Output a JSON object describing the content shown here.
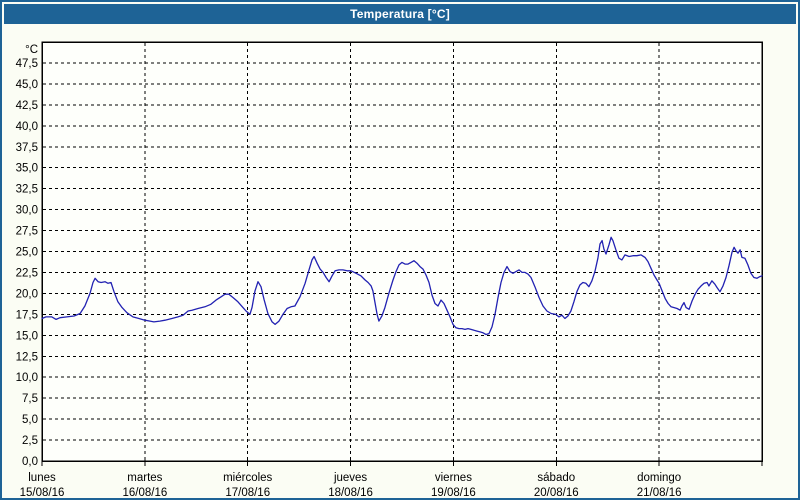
{
  "window": {
    "title": "Temperatura [°C]"
  },
  "colors": {
    "chrome_blue": "#1E6396",
    "title_text": "#FFFFFF",
    "content_bg": "#FBFDF4",
    "plot_bg": "#FEFFFB",
    "line_blue": "#2222B2",
    "grid_black": "#000000",
    "text_black": "#000000"
  },
  "chart_data": {
    "type": "line",
    "title": "Temperatura [°C]",
    "legend": "none",
    "grid": "dashed",
    "y_axis": {
      "unit_label": "°C",
      "min": 0,
      "max": 50,
      "grid_step": 2.5,
      "tick_values": [
        0,
        2.5,
        5,
        7.5,
        10,
        12.5,
        15,
        17.5,
        20,
        22.5,
        25,
        27.5,
        30,
        32.5,
        35,
        37.5,
        40,
        42.5,
        45,
        47.5
      ],
      "tick_labels": [
        "0,0",
        "2,5",
        "5,0",
        "7,5",
        "10,0",
        "12,5",
        "15,0",
        "17,5",
        "20,0",
        "22,5",
        "25,0",
        "27,5",
        "30,0",
        "32,5",
        "35,0",
        "37,5",
        "40,0",
        "42,5",
        "45,0",
        "47,5"
      ]
    },
    "x_axis": {
      "total_hours": 168,
      "day_ticks_hours": [
        0,
        24,
        48,
        72,
        96,
        120,
        144,
        168
      ],
      "days": [
        {
          "name": "lunes",
          "date": "15/08/16",
          "start_hour": 0
        },
        {
          "name": "martes",
          "date": "16/08/16",
          "start_hour": 24
        },
        {
          "name": "miércoles",
          "date": "17/08/16",
          "start_hour": 48
        },
        {
          "name": "jueves",
          "date": "18/08/16",
          "start_hour": 72
        },
        {
          "name": "viernes",
          "date": "19/08/16",
          "start_hour": 96
        },
        {
          "name": "sábado",
          "date": "20/08/16",
          "start_hour": 120
        },
        {
          "name": "domingo",
          "date": "21/08/16",
          "start_hour": 144
        }
      ]
    },
    "series": [
      {
        "name": "Temperatura",
        "unit": "°C",
        "points": [
          [
            0,
            17.0
          ],
          [
            0.9,
            17.2
          ],
          [
            2.3,
            17.2
          ],
          [
            3.3,
            16.9
          ],
          [
            4.2,
            17.1
          ],
          [
            5.8,
            17.2
          ],
          [
            7.5,
            17.3
          ],
          [
            8.9,
            17.6
          ],
          [
            10,
            18.5
          ],
          [
            11.2,
            20
          ],
          [
            11.9,
            21.3
          ],
          [
            12.4,
            21.8
          ],
          [
            13.1,
            21.4
          ],
          [
            13.8,
            21.3
          ],
          [
            14.7,
            21.4
          ],
          [
            15.4,
            21.2
          ],
          [
            16.1,
            21.3
          ],
          [
            16.8,
            20.2
          ],
          [
            17.7,
            19
          ],
          [
            18.7,
            18.3
          ],
          [
            19.8,
            17.7
          ],
          [
            21.2,
            17.2
          ],
          [
            22.6,
            17
          ],
          [
            24,
            16.8
          ],
          [
            25.2,
            16.7
          ],
          [
            26.1,
            16.6
          ],
          [
            27.5,
            16.7
          ],
          [
            28.7,
            16.8
          ],
          [
            30.3,
            17
          ],
          [
            31.7,
            17.2
          ],
          [
            32.9,
            17.4
          ],
          [
            34.1,
            17.9
          ],
          [
            35,
            18
          ],
          [
            36.4,
            18.2
          ],
          [
            38,
            18.4
          ],
          [
            39.4,
            18.7
          ],
          [
            40.6,
            19.2
          ],
          [
            41.8,
            19.6
          ],
          [
            42.7,
            19.9
          ],
          [
            43.6,
            19.9
          ],
          [
            44.6,
            19.5
          ],
          [
            45.7,
            19
          ],
          [
            46.9,
            18.3
          ],
          [
            47.6,
            17.9
          ],
          [
            48.1,
            17.7
          ],
          [
            48.5,
            17.5
          ],
          [
            49,
            18.3
          ],
          [
            49.7,
            20.3
          ],
          [
            50.4,
            21.4
          ],
          [
            51.1,
            20.8
          ],
          [
            51.8,
            19.3
          ],
          [
            52.7,
            17.6
          ],
          [
            53.7,
            16.6
          ],
          [
            54.4,
            16.3
          ],
          [
            55.3,
            16.7
          ],
          [
            56.2,
            17.5
          ],
          [
            57.2,
            18.2
          ],
          [
            58.1,
            18.4
          ],
          [
            59,
            18.5
          ],
          [
            60.2,
            19.6
          ],
          [
            61.4,
            21.2
          ],
          [
            62.3,
            22.8
          ],
          [
            63,
            24
          ],
          [
            63.5,
            24.4
          ],
          [
            64.2,
            23.6
          ],
          [
            64.9,
            22.9
          ],
          [
            65.6,
            22.5
          ],
          [
            66.3,
            21.9
          ],
          [
            67,
            21.4
          ],
          [
            67.7,
            22.1
          ],
          [
            68.4,
            22.7
          ],
          [
            69.3,
            22.8
          ],
          [
            70.2,
            22.8
          ],
          [
            71.2,
            22.7
          ],
          [
            72.1,
            22.7
          ],
          [
            73.3,
            22.4
          ],
          [
            74.4,
            22.1
          ],
          [
            75.4,
            21.6
          ],
          [
            76.1,
            21.3
          ],
          [
            76.8,
            20.9
          ],
          [
            77.2,
            20.3
          ],
          [
            77.7,
            18.9
          ],
          [
            78.2,
            17.5
          ],
          [
            78.6,
            16.7
          ],
          [
            79.3,
            17.3
          ],
          [
            80,
            18.3
          ],
          [
            81,
            20.1
          ],
          [
            81.9,
            21.6
          ],
          [
            82.6,
            22.6
          ],
          [
            83.3,
            23.4
          ],
          [
            84,
            23.7
          ],
          [
            84.7,
            23.5
          ],
          [
            85.4,
            23.5
          ],
          [
            86.1,
            23.7
          ],
          [
            86.8,
            23.9
          ],
          [
            87.5,
            23.6
          ],
          [
            88.2,
            23.2
          ],
          [
            88.9,
            22.9
          ],
          [
            89.6,
            22.2
          ],
          [
            90.3,
            21.3
          ],
          [
            91,
            19.8
          ],
          [
            91.7,
            18.8
          ],
          [
            92.4,
            18.5
          ],
          [
            93.1,
            19.2
          ],
          [
            93.8,
            18.8
          ],
          [
            94.5,
            18
          ],
          [
            95.2,
            17.2
          ],
          [
            95.9,
            16.3
          ],
          [
            96.6,
            15.9
          ],
          [
            97.3,
            15.8
          ],
          [
            98,
            15.8
          ],
          [
            98.7,
            15.7
          ],
          [
            99.4,
            15.8
          ],
          [
            100.1,
            15.7
          ],
          [
            100.8,
            15.6
          ],
          [
            101.5,
            15.5
          ],
          [
            102.2,
            15.4
          ],
          [
            102.9,
            15.3
          ],
          [
            103.6,
            15.1
          ],
          [
            104.3,
            15.2
          ],
          [
            105,
            16
          ],
          [
            105.7,
            17.5
          ],
          [
            106.4,
            19.5
          ],
          [
            107.1,
            21.3
          ],
          [
            107.8,
            22.5
          ],
          [
            108.5,
            23.2
          ],
          [
            109.2,
            22.6
          ],
          [
            109.9,
            22.4
          ],
          [
            110.6,
            22.6
          ],
          [
            111.3,
            22.8
          ],
          [
            112,
            22.5
          ],
          [
            112.7,
            22.5
          ],
          [
            113.4,
            22.3
          ],
          [
            114.1,
            21.9
          ],
          [
            115,
            20.8
          ],
          [
            116,
            19.5
          ],
          [
            116.9,
            18.5
          ],
          [
            117.8,
            17.9
          ],
          [
            118.8,
            17.6
          ],
          [
            119.9,
            17.5
          ],
          [
            120.6,
            17.2
          ],
          [
            121.3,
            17.4
          ],
          [
            122,
            17
          ],
          [
            122.7,
            17.3
          ],
          [
            123.4,
            17.9
          ],
          [
            124.1,
            19
          ],
          [
            124.8,
            20.2
          ],
          [
            125.5,
            21
          ],
          [
            126.2,
            21.3
          ],
          [
            126.9,
            21.2
          ],
          [
            127.6,
            20.8
          ],
          [
            128.3,
            21.5
          ],
          [
            129,
            22.6
          ],
          [
            129.7,
            24.2
          ],
          [
            130.2,
            25.9
          ],
          [
            130.7,
            26.3
          ],
          [
            131.1,
            25.3
          ],
          [
            131.6,
            24.7
          ],
          [
            132.3,
            25.8
          ],
          [
            132.8,
            26.7
          ],
          [
            133.2,
            26.3
          ],
          [
            133.9,
            25.2
          ],
          [
            134.6,
            24.2
          ],
          [
            135.3,
            24
          ],
          [
            136,
            24.6
          ],
          [
            137,
            24.4
          ],
          [
            137.9,
            24.5
          ],
          [
            138.8,
            24.5
          ],
          [
            139.8,
            24.6
          ],
          [
            140.7,
            24.3
          ],
          [
            141.4,
            23.8
          ],
          [
            142.1,
            23
          ],
          [
            142.8,
            22.2
          ],
          [
            143.5,
            21.6
          ],
          [
            144,
            21.2
          ],
          [
            144.7,
            20.3
          ],
          [
            145.4,
            19.4
          ],
          [
            146.1,
            18.8
          ],
          [
            146.8,
            18.4
          ],
          [
            147.5,
            18.3
          ],
          [
            148.2,
            18.2
          ],
          [
            148.9,
            18
          ],
          [
            149.3,
            18.5
          ],
          [
            149.8,
            18.9
          ],
          [
            150.3,
            18.3
          ],
          [
            151,
            18.1
          ],
          [
            151.7,
            19.1
          ],
          [
            152.4,
            19.9
          ],
          [
            153.1,
            20.5
          ],
          [
            153.8,
            20.9
          ],
          [
            154.5,
            21.2
          ],
          [
            155.2,
            21.3
          ],
          [
            155.6,
            20.9
          ],
          [
            156.3,
            21.5
          ],
          [
            157,
            21.1
          ],
          [
            157.5,
            20.7
          ],
          [
            158.2,
            20.2
          ],
          [
            158.9,
            20.9
          ],
          [
            159.6,
            21.9
          ],
          [
            160.3,
            23.3
          ],
          [
            161,
            24.9
          ],
          [
            161.5,
            25.5
          ],
          [
            161.9,
            25.1
          ],
          [
            162.4,
            24.8
          ],
          [
            162.9,
            25.2
          ],
          [
            163.3,
            24.3
          ],
          [
            164,
            24.2
          ],
          [
            164.7,
            23.4
          ],
          [
            165.4,
            22.4
          ],
          [
            166.1,
            21.9
          ],
          [
            166.8,
            21.8
          ],
          [
            167.5,
            22
          ],
          [
            168,
            22.1
          ]
        ]
      }
    ]
  }
}
